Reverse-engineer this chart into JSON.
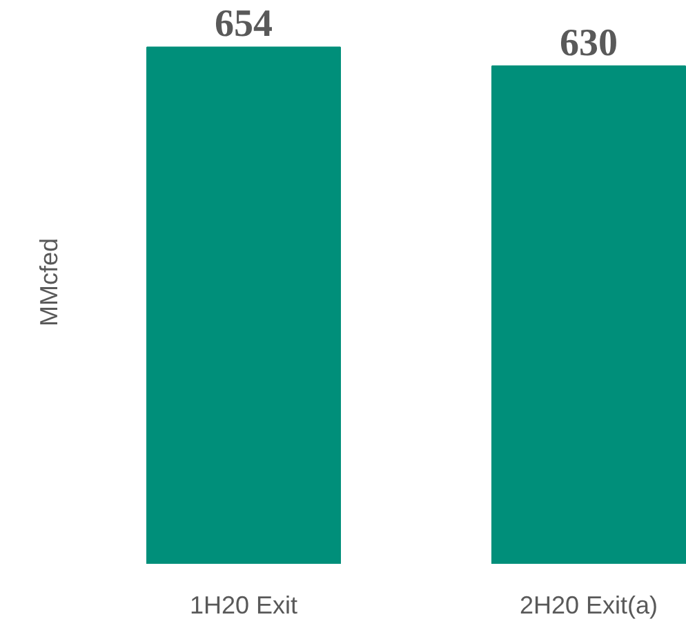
{
  "chart_data": {
    "type": "bar",
    "ylabel": "MMcfed",
    "categories": [
      "1H20 Exit",
      "2H20 Exit(a)"
    ],
    "values": [
      654,
      630
    ],
    "color": "#008f7a",
    "data_labels": true,
    "grid": false
  }
}
